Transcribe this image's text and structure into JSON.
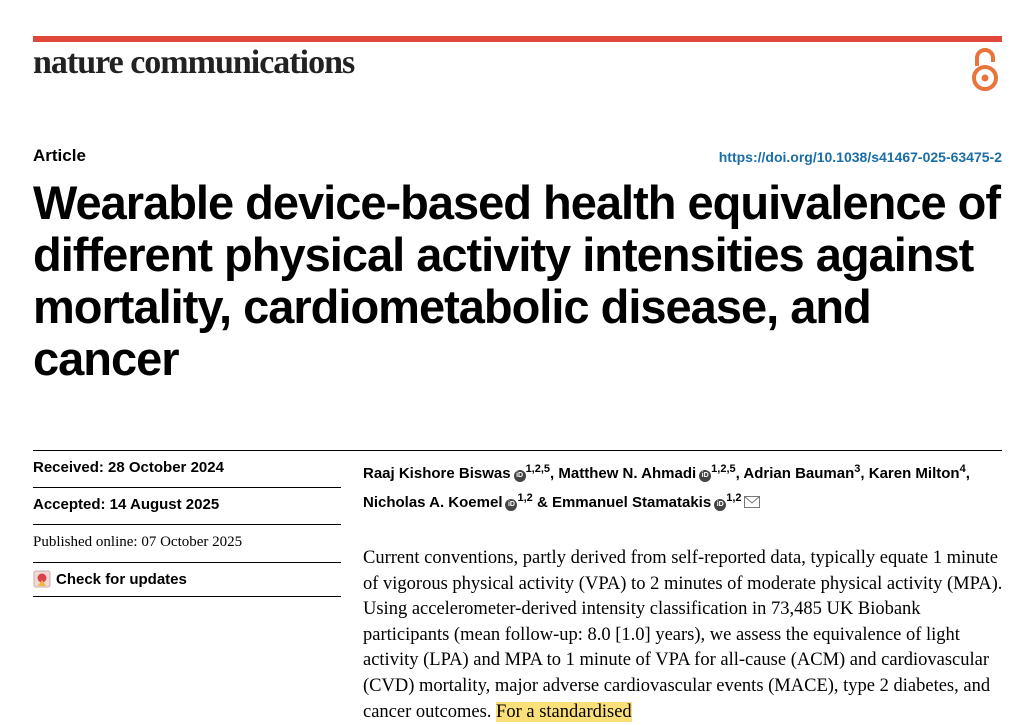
{
  "header": {
    "journal": "nature communications",
    "accent_color": "#e0483a",
    "open_access_icon": "open-access-icon"
  },
  "article": {
    "type": "Article",
    "doi": "https://doi.org/10.1038/s41467-025-63475-2",
    "title": "Wearable device-based health equivalence of different physical activity intensities against mortality, cardiometabolic disease, and cancer"
  },
  "meta": {
    "received": "Received: 28 October 2024",
    "accepted": "Accepted: 14 August 2025",
    "published": "Published online: 07 October 2025",
    "check_updates": "Check for updates"
  },
  "authors": [
    {
      "name": "Raaj Kishore Biswas",
      "aff": "1,2,5",
      "orcid": true,
      "sep": ", "
    },
    {
      "name": "Matthew N. Ahmadi",
      "aff": "1,2,5",
      "orcid": true,
      "sep": ", "
    },
    {
      "name": "Adrian Bauman",
      "aff": "3",
      "orcid": false,
      "sep": ", "
    },
    {
      "name": "Karen Milton",
      "aff": "4",
      "orcid": false,
      "sep": ", "
    },
    {
      "name": "Nicholas A. Koemel",
      "aff": "1,2",
      "orcid": true,
      "sep": " & "
    },
    {
      "name": "Emmanuel Stamatakis",
      "aff": "1,2",
      "orcid": true,
      "sep": "",
      "mail": true
    }
  ],
  "abstract": {
    "text": "Current conventions, partly derived from self-reported data, typically equate 1 minute of vigorous physical activity (VPA) to 2 minutes of moderate physical activity (MPA). Using accelerometer-derived intensity classification in 73,485 UK Biobank participants (mean follow-up: 8.0 [1.0] years), we assess the equivalence of light activity (LPA) and MPA to 1 minute of VPA for all-cause (ACM) and cardiovascular (CVD) mortality, major adverse cardiovascular events (MACE), type 2 diabetes, and cancer outcomes. ",
    "highlight": "For a standardised",
    "highlight_color": "#fbe07a"
  }
}
